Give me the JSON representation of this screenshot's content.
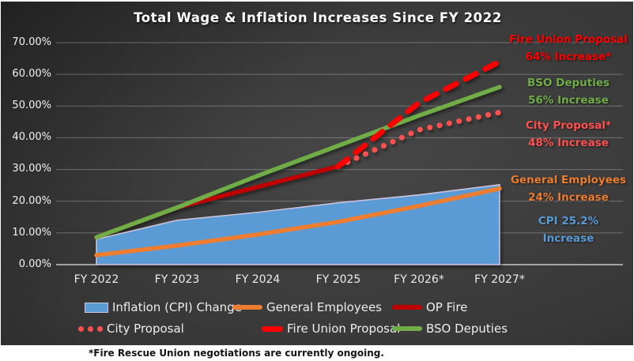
{
  "title": "Total Wage & Inflation Increases Since FY 2022",
  "footnote": "*Fire Rescue Union negotiations are currently ongoing.",
  "colors": {
    "cpi_blue": "#5B9BD5",
    "general_orange": "#ED7D31",
    "op_fire_darkred": "#C00000",
    "city_salmon": "#FF5050",
    "fire_union_red": "#FF0000",
    "bso_green": "#70AD47",
    "area_edge": "#CCC2DC",
    "gridline": "rgba(255,255,255,0.28)",
    "axis_line": "#C8C8C8"
  },
  "chart_data": {
    "type": "area",
    "title": "Total Wage & Inflation Increases Since FY 2022",
    "xlabel": "",
    "ylabel": "",
    "ylim": [
      0,
      70
    ],
    "grid": true,
    "legend_position": "bottom",
    "categories": [
      "FY 2022",
      "FY 2023",
      "FY 2024",
      "FY 2025",
      "FY 2026*",
      "FY 2027*"
    ],
    "y_ticks": [
      "70.00%",
      "60.00%",
      "50.00%",
      "40.00%",
      "30.00%",
      "20.00%",
      "10.00%",
      "0.00%"
    ],
    "series": [
      {
        "name": "Inflation (CPI) Change",
        "type": "area",
        "color": "#5B9BD5",
        "values": [
          8,
          14,
          16.5,
          19.5,
          22,
          25.2
        ]
      },
      {
        "name": "General Employees",
        "type": "line",
        "color": "#ED7D31",
        "values": [
          3,
          6,
          9.5,
          13.5,
          18.5,
          24
        ]
      },
      {
        "name": "OP Fire",
        "type": "line",
        "color": "#C00000",
        "values": [
          8.6,
          18,
          24.5,
          31,
          null,
          null
        ]
      },
      {
        "name": "City Proposal",
        "type": "dotted",
        "color": "#FF5050",
        "values": [
          null,
          null,
          null,
          31,
          42.5,
          48
        ]
      },
      {
        "name": "BSO Deputies",
        "type": "line",
        "color": "#70AD47",
        "values": [
          8.6,
          18,
          28,
          37.5,
          47,
          56
        ]
      },
      {
        "name": "Fire Union Proposal",
        "type": "dashed",
        "color": "#FF0000",
        "values": [
          null,
          null,
          null,
          31,
          51,
          64
        ]
      }
    ]
  },
  "legend": {
    "items": [
      {
        "label": "Inflation (CPI) Change",
        "marker": "swatch",
        "color": "#5B9BD5"
      },
      {
        "label": "General Employees",
        "marker": "line",
        "color": "#ED7D31"
      },
      {
        "label": "OP Fire",
        "marker": "line",
        "color": "#C00000"
      },
      {
        "label": "City Proposal",
        "marker": "dots",
        "color": "#FF5050"
      },
      {
        "label": "Fire Union Proposal",
        "marker": "dash",
        "color": "#FF0000"
      },
      {
        "label": "BSO Deputies",
        "marker": "line",
        "color": "#70AD47"
      }
    ]
  },
  "annotations": [
    {
      "line1": "Fire Union Proposal",
      "line2": "64% Increase*",
      "color": "#FF0000"
    },
    {
      "line1": "BSO Deputies",
      "line2": "56% Increase",
      "color": "#70AD47"
    },
    {
      "line1": "City Proposal*",
      "line2": "48% Increase",
      "color": "#FF5050"
    },
    {
      "line1": "General Employees",
      "line2": "24% Increase",
      "color": "#ED7D31"
    },
    {
      "line1": "CPI 25.2%",
      "line2": "Increase",
      "color": "#5B9BD5"
    }
  ]
}
